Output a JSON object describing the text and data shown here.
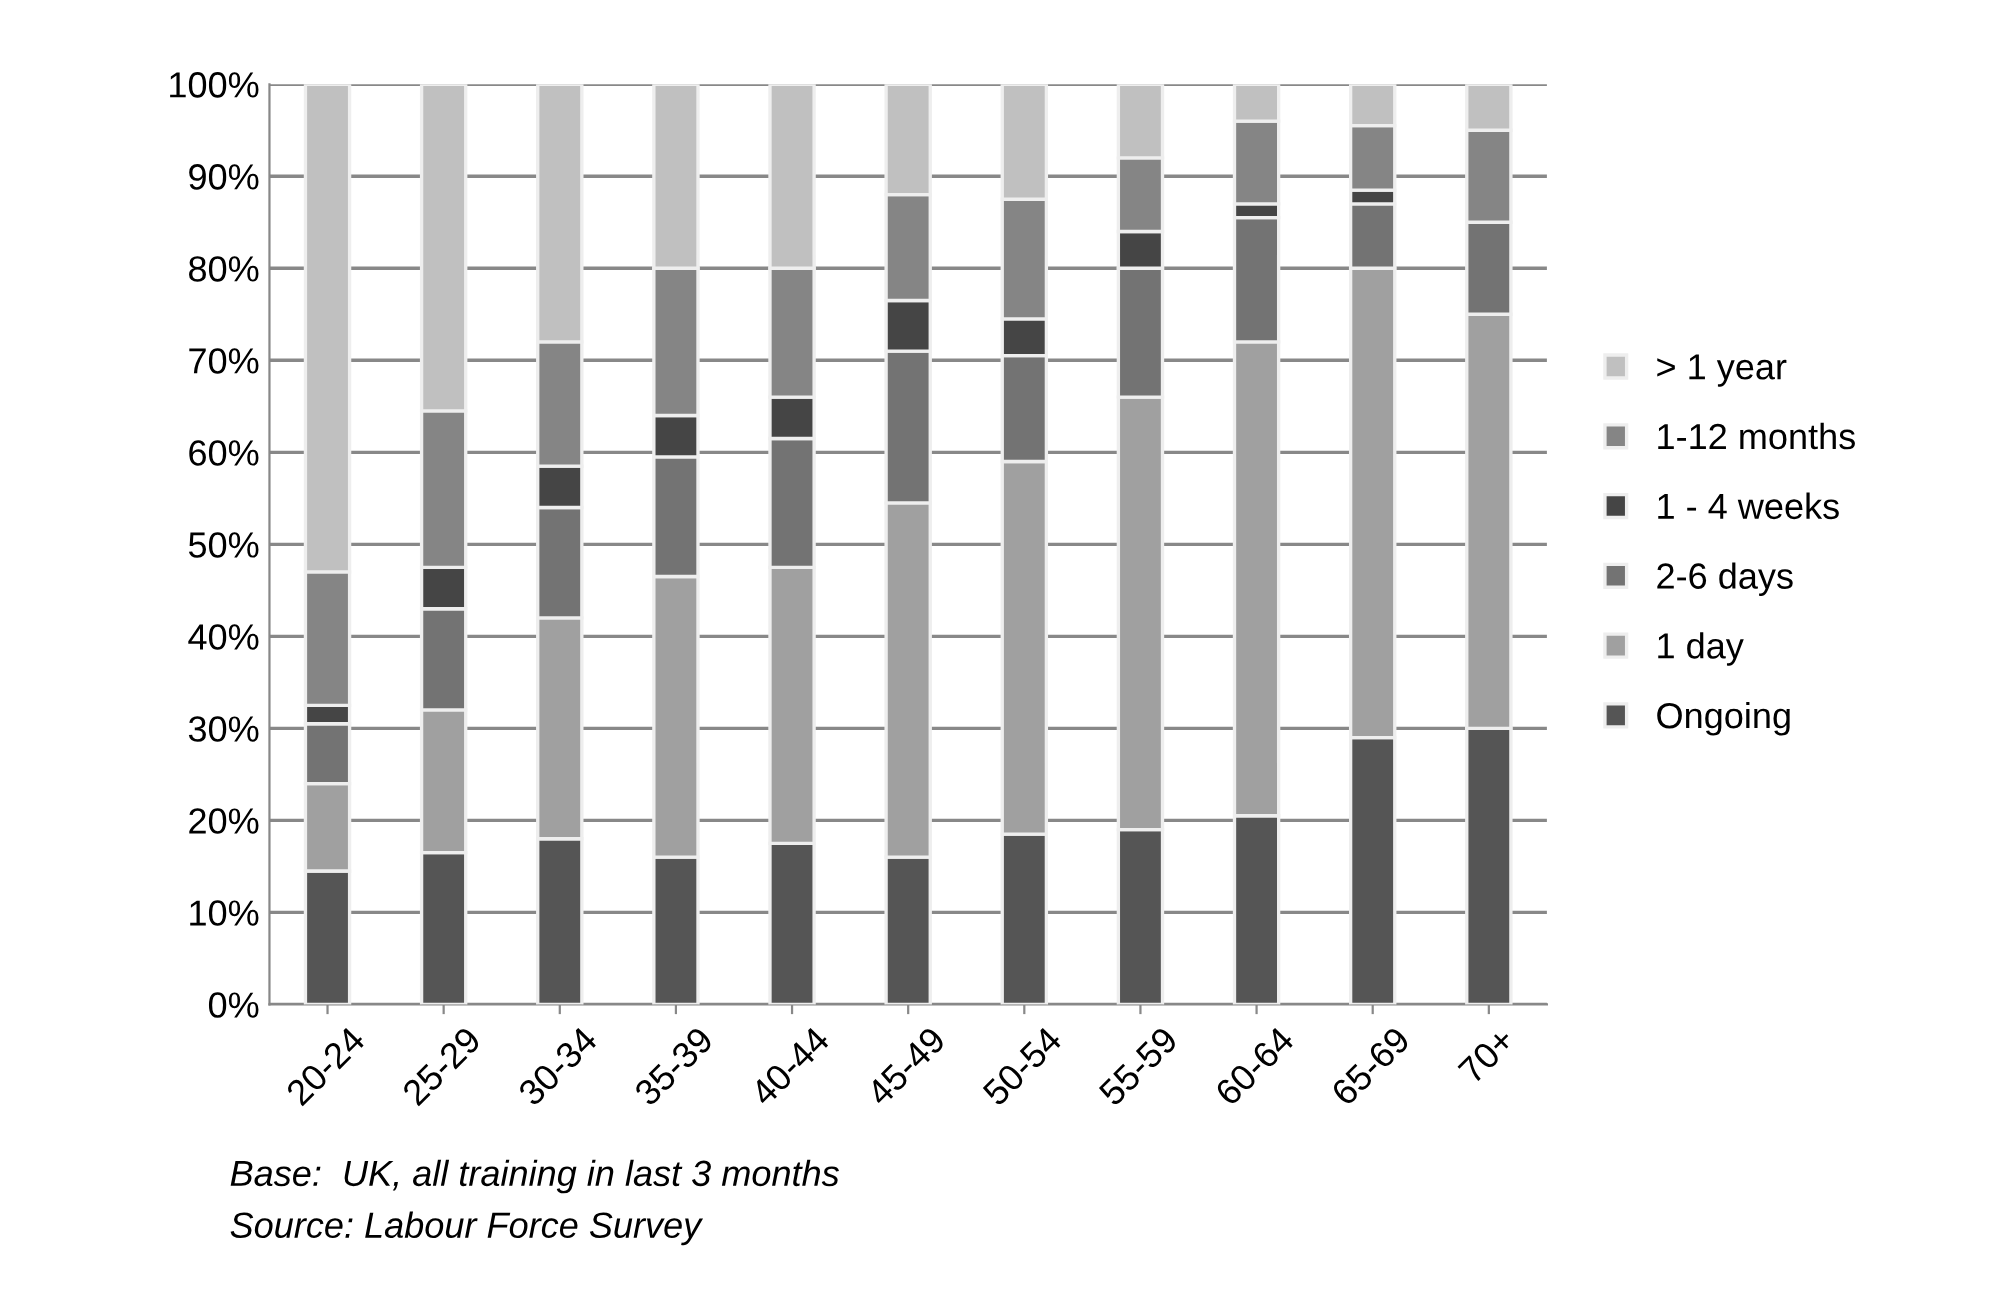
{
  "chart_data": {
    "type": "bar",
    "stacked": true,
    "categories": [
      "20-24",
      "25-29",
      "30-34",
      "35-39",
      "40-44",
      "45-49",
      "50-54",
      "55-59",
      "60-64",
      "65-69",
      "70+"
    ],
    "series": [
      {
        "name": "Ongoing",
        "color": "#555555",
        "values": [
          14.5,
          16.5,
          18,
          16,
          17.5,
          16,
          18.5,
          19,
          20.5,
          29,
          30
        ]
      },
      {
        "name": "1 day",
        "color": "#a0a0a0",
        "values": [
          9.5,
          15.5,
          24,
          30.5,
          30,
          38.5,
          40.5,
          47,
          51.5,
          51,
          45
        ]
      },
      {
        "name": "2-6 days",
        "color": "#737373",
        "values": [
          6.5,
          11,
          12,
          13,
          14,
          16.5,
          11.5,
          14,
          13.5,
          7,
          10
        ]
      },
      {
        "name": "1 - 4 weeks",
        "color": "#454545",
        "values": [
          2,
          4.5,
          4.5,
          4.5,
          4.5,
          5.5,
          4,
          4,
          1.5,
          1.5,
          0
        ]
      },
      {
        "name": "1-12 months",
        "color": "#858585",
        "values": [
          14.5,
          17,
          13.5,
          16,
          14,
          11.5,
          13,
          8,
          9,
          7,
          10
        ]
      },
      {
        "name": "> 1 year",
        "color": "#c0c0c0",
        "values": [
          53,
          35.5,
          28,
          20,
          20,
          12,
          12.5,
          8,
          4,
          4.5,
          5
        ]
      }
    ],
    "ylim": [
      0,
      100
    ],
    "yticks": [
      {
        "value": 0,
        "label": "0%"
      },
      {
        "value": 10,
        "label": "10%"
      },
      {
        "value": 20,
        "label": "20%"
      },
      {
        "value": 30,
        "label": "30%"
      },
      {
        "value": 40,
        "label": "40%"
      },
      {
        "value": 50,
        "label": "50%"
      },
      {
        "value": 60,
        "label": "60%"
      },
      {
        "value": 70,
        "label": "70%"
      },
      {
        "value": 80,
        "label": "80%"
      },
      {
        "value": 90,
        "label": "90%"
      },
      {
        "value": 100,
        "label": "100%"
      }
    ],
    "grid": "y",
    "legend": "right",
    "annotations": [
      "Base:  UK, all training in last 3 months",
      "Source: Labour Force Survey"
    ]
  }
}
